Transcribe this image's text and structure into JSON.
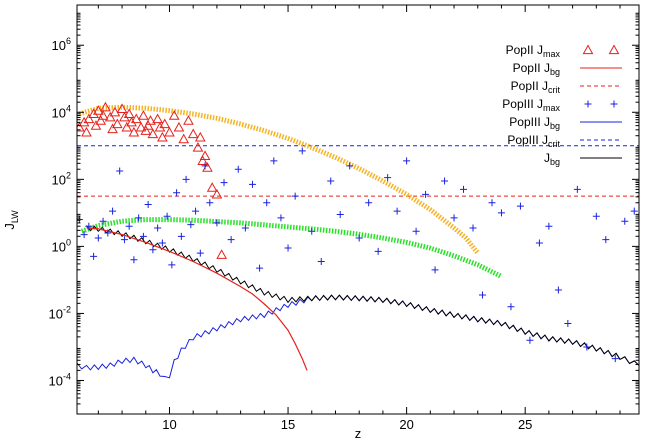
{
  "chart_data": {
    "type": "scatter",
    "title": "",
    "xlabel": "z",
    "ylabel_main": "J",
    "ylabel_sub": "LW",
    "xlim": [
      6.1,
      29.8
    ],
    "ylim_log10": [
      -5,
      7.2
    ],
    "yscale": "log",
    "x_ticks": [
      10,
      15,
      20,
      25
    ],
    "x_tick_labels": [
      "10",
      "15",
      "20",
      "25"
    ],
    "y_tick_exponents": [
      -4,
      -2,
      0,
      2,
      4,
      6
    ],
    "y_tick_labels": [
      {
        "base": "10",
        "exp": "-4"
      },
      {
        "base": "10",
        "exp": "-2"
      },
      {
        "base": "10",
        "exp": "0"
      },
      {
        "base": "10",
        "exp": "2"
      },
      {
        "base": "10",
        "exp": "4"
      },
      {
        "base": "10",
        "exp": "6"
      }
    ],
    "grid": false,
    "legend_placement": "top-right",
    "colors": {
      "popII": "#e8201a",
      "popIII": "#1a22e0",
      "jbg": "#000000",
      "orange": "#f6b222",
      "green": "#28e028"
    },
    "legend": [
      {
        "name": "PopII J",
        "sub": "max",
        "style": "triangle",
        "color": "#e8201a"
      },
      {
        "name": "PopII J",
        "sub": "bg",
        "style": "solid",
        "color": "#e8201a"
      },
      {
        "name": "PopII J",
        "sub": "crit",
        "style": "dashed",
        "color": "#e8201a"
      },
      {
        "name": "PopIII J",
        "sub": "max",
        "style": "plus",
        "color": "#1a22e0"
      },
      {
        "name": "PopIII J",
        "sub": "bg",
        "style": "solid",
        "color": "#1a22e0"
      },
      {
        "name": "PopIII J",
        "sub": "crit",
        "style": "dashed",
        "color": "#1a22e0"
      },
      {
        "name": "J",
        "sub": "bg",
        "style": "solid",
        "color": "#000000"
      }
    ],
    "series": {
      "popII_crit": {
        "log10_value": 1.5
      },
      "popIII_crit": {
        "log10_value": 3.0
      },
      "orange_band": {
        "x": [
          6.2,
          7.0,
          8.0,
          9.0,
          10.0,
          11.0,
          12.0,
          13.0,
          14.0,
          15.0,
          16.0,
          17.0,
          18.0,
          19.0,
          20.0,
          21.0,
          22.0,
          22.5,
          23.0
        ],
        "log10_y": [
          3.95,
          4.12,
          4.15,
          4.12,
          4.05,
          3.95,
          3.82,
          3.65,
          3.45,
          3.22,
          2.95,
          2.65,
          2.32,
          1.95,
          1.55,
          1.1,
          0.55,
          0.25,
          -0.2
        ]
      },
      "green_band": {
        "x": [
          6.3,
          7.0,
          8.0,
          9.0,
          10.0,
          11.0,
          12.0,
          13.0,
          14.0,
          15.0,
          16.0,
          17.0,
          18.0,
          19.0,
          20.0,
          21.0,
          22.0,
          23.0,
          24.0
        ],
        "log10_y": [
          0.45,
          0.62,
          0.75,
          0.8,
          0.8,
          0.78,
          0.74,
          0.7,
          0.64,
          0.58,
          0.52,
          0.45,
          0.36,
          0.25,
          0.12,
          -0.05,
          -0.28,
          -0.55,
          -0.9
        ]
      },
      "popII_bg": {
        "x": [
          6.5,
          7.0,
          8.0,
          9.0,
          10.0,
          11.0,
          12.0,
          13.0,
          13.5,
          14.0,
          14.5,
          15.0,
          15.3,
          15.6,
          15.8
        ],
        "log10_y": [
          0.55,
          0.52,
          0.35,
          0.12,
          -0.15,
          -0.45,
          -0.8,
          -1.2,
          -1.42,
          -1.72,
          -2.05,
          -2.5,
          -2.9,
          -3.35,
          -3.7
        ]
      },
      "popIII_bg": {
        "x": [
          6.1,
          6.5,
          7.0,
          7.5,
          8.0,
          8.5,
          9.0,
          9.3,
          9.6,
          9.8,
          10.0,
          10.2,
          10.5,
          11.0,
          12.0,
          13.0,
          14.0,
          15.0,
          16.0,
          17.0,
          18.0,
          19.0,
          20.0,
          21.0,
          22.0,
          23.0,
          24.0,
          25.0,
          26.0,
          27.0,
          28.0,
          29.0,
          29.8
        ],
        "log10_y": [
          -3.55,
          -3.62,
          -3.6,
          -3.55,
          -3.42,
          -3.38,
          -3.55,
          -3.7,
          -3.8,
          -3.95,
          -3.85,
          -3.45,
          -3.1,
          -2.72,
          -2.45,
          -2.18,
          -2.05,
          -1.75,
          -1.55,
          -1.52,
          -1.55,
          -1.6,
          -1.72,
          -1.9,
          -2.05,
          -2.18,
          -2.3,
          -2.55,
          -2.75,
          -2.85,
          -3.05,
          -3.3,
          -3.55
        ]
      },
      "total_bg": {
        "x": [
          6.5,
          7.0,
          8.0,
          9.0,
          10.0,
          11.0,
          12.0,
          13.0,
          14.0,
          15.0,
          16.0,
          17.0,
          18.0,
          19.0,
          20.0,
          21.0,
          22.0,
          23.0,
          24.0,
          25.0,
          26.0,
          27.0,
          28.0,
          29.0,
          29.8
        ],
        "log10_y": [
          0.55,
          0.52,
          0.37,
          0.15,
          -0.1,
          -0.38,
          -0.7,
          -1.05,
          -1.38,
          -1.6,
          -1.55,
          -1.52,
          -1.55,
          -1.6,
          -1.72,
          -1.9,
          -2.05,
          -2.18,
          -2.3,
          -2.55,
          -2.75,
          -2.85,
          -3.05,
          -3.3,
          -3.55
        ]
      },
      "popII_max": {
        "x": [
          6.2,
          6.4,
          6.5,
          6.6,
          6.8,
          6.9,
          7.0,
          7.1,
          7.2,
          7.3,
          7.5,
          7.6,
          7.7,
          7.8,
          8.0,
          8.1,
          8.2,
          8.3,
          8.4,
          8.5,
          8.6,
          8.8,
          8.9,
          9.0,
          9.1,
          9.2,
          9.3,
          9.5,
          9.6,
          9.7,
          9.8,
          10.0,
          10.2,
          10.4,
          10.6,
          10.8,
          11.0,
          11.2,
          11.3,
          11.4,
          11.5,
          11.6,
          11.8,
          12.0,
          12.2
        ],
        "log10_y": [
          3.55,
          3.7,
          3.4,
          3.8,
          3.95,
          3.6,
          4.05,
          3.75,
          3.9,
          4.15,
          3.85,
          3.5,
          4.0,
          3.65,
          4.1,
          3.85,
          3.55,
          3.95,
          3.7,
          3.4,
          3.8,
          3.55,
          3.9,
          3.45,
          3.6,
          3.75,
          3.35,
          3.8,
          3.55,
          3.25,
          3.65,
          3.4,
          3.9,
          3.55,
          3.2,
          3.75,
          3.35,
          2.95,
          3.25,
          2.55,
          2.7,
          2.35,
          1.75,
          1.55,
          -0.25
        ]
      },
      "popIII_max": {
        "x": [
          6.2,
          6.4,
          6.6,
          6.8,
          7.0,
          7.2,
          7.4,
          7.6,
          7.9,
          8.1,
          8.3,
          8.5,
          8.7,
          8.9,
          9.1,
          9.3,
          9.5,
          9.7,
          9.9,
          10.1,
          10.3,
          10.5,
          10.7,
          10.9,
          11.1,
          11.3,
          11.5,
          11.7,
          12.0,
          12.3,
          12.6,
          12.9,
          13.2,
          13.5,
          13.8,
          14.1,
          14.4,
          14.7,
          15.0,
          15.3,
          15.6,
          16.0,
          16.4,
          16.8,
          17.2,
          17.6,
          18.0,
          18.4,
          18.8,
          19.2,
          19.6,
          20.0,
          20.4,
          20.8,
          21.2,
          21.6,
          22.0,
          22.4,
          22.8,
          23.2,
          23.6,
          24.0,
          24.4,
          24.8,
          25.2,
          25.6,
          26.0,
          26.4,
          26.8,
          27.2,
          27.6,
          28.0,
          28.4,
          28.8,
          29.2,
          29.6
        ],
        "log10_y": [
          0.8,
          0.35,
          0.6,
          -0.3,
          0.25,
          0.75,
          0.4,
          1.05,
          2.25,
          0.2,
          0.6,
          -0.4,
          0.85,
          0.3,
          1.25,
          -0.1,
          0.55,
          0.1,
          0.9,
          -0.55,
          1.6,
          0.3,
          2.0,
          0.65,
          1.05,
          -0.2,
          2.4,
          1.3,
          0.7,
          1.9,
          0.2,
          2.3,
          0.55,
          1.85,
          -0.65,
          1.3,
          2.55,
          0.85,
          -0.05,
          1.5,
          2.85,
          0.45,
          -0.45,
          1.95,
          0.95,
          2.4,
          0.25,
          1.3,
          -0.15,
          2.05,
          1.05,
          2.55,
          0.45,
          1.55,
          -0.7,
          1.95,
          0.85,
          1.7,
          0.55,
          -1.45,
          1.3,
          1.0,
          -1.8,
          1.2,
          -2.8,
          0.1,
          0.6,
          -1.3,
          -2.3,
          1.7,
          -3.0,
          0.9,
          0.2,
          -3.35,
          0.75,
          1.05
        ]
      }
    }
  }
}
